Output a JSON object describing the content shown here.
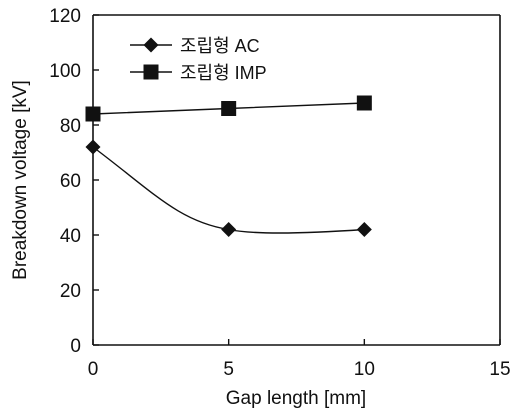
{
  "chart_data": {
    "type": "line",
    "xlabel": "Gap length [mm]",
    "ylabel": "Breakdown voltage [kV]",
    "xlim": [
      0,
      15
    ],
    "ylim": [
      0,
      120
    ],
    "x_ticks": [
      0,
      5,
      10,
      15
    ],
    "y_ticks": [
      0,
      20,
      40,
      60,
      80,
      100,
      120
    ],
    "grid": false,
    "legend_position": "top-left",
    "series": [
      {
        "name": "조립형 AC",
        "marker": "diamond",
        "x": [
          0,
          5,
          10
        ],
        "y": [
          72,
          42,
          42
        ]
      },
      {
        "name": "조립형 IMP",
        "marker": "square",
        "x": [
          0,
          5,
          10
        ],
        "y": [
          84,
          86,
          88
        ]
      }
    ]
  }
}
